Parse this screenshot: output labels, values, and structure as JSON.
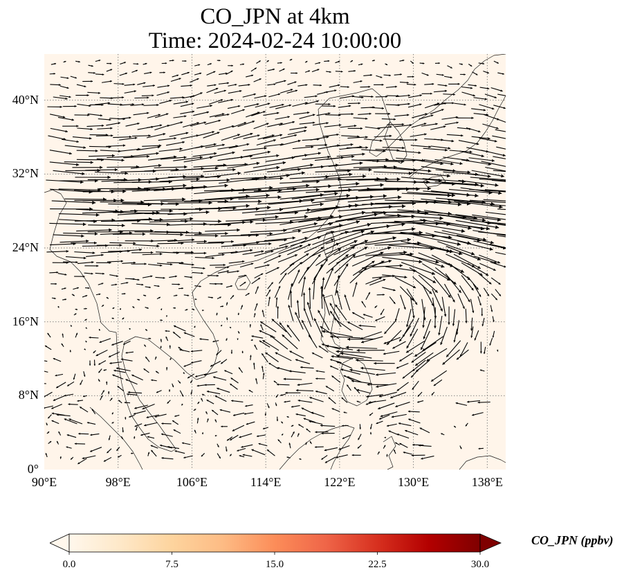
{
  "title": {
    "line1": "CO_JPN at 4km",
    "line2": "Time: 2024-02-24 10:00:00"
  },
  "map": {
    "projection": "PlateCarree",
    "lon_range": [
      90,
      140
    ],
    "lat_range": [
      0,
      45
    ],
    "gridlines": "dotted",
    "background_color": "#fff5ea",
    "coastline_color": "#1a1a1a",
    "vector_color": "#000000",
    "vector_field_description": "strong westerly jet across 24-36N, anticyclonic circulation near 118-130E 15-22N, weak variable winds south of 15N"
  },
  "axes": {
    "lat_ticks": [
      {
        "value": 40,
        "label": "40°N"
      },
      {
        "value": 32,
        "label": "32°N"
      },
      {
        "value": 24,
        "label": "24°N"
      },
      {
        "value": 16,
        "label": "16°N"
      },
      {
        "value": 8,
        "label": "8°N"
      },
      {
        "value": 0,
        "label": "0°"
      }
    ],
    "lon_ticks": [
      {
        "value": 90,
        "label": "90°E"
      },
      {
        "value": 98,
        "label": "98°E"
      },
      {
        "value": 106,
        "label": "106°E"
      },
      {
        "value": 114,
        "label": "114°E"
      },
      {
        "value": 122,
        "label": "122°E"
      },
      {
        "value": 130,
        "label": "130°E"
      },
      {
        "value": 138,
        "label": "138°E"
      }
    ]
  },
  "colorbar": {
    "label": "CO_JPN (ppbv)",
    "colormap": "OrRd",
    "range": [
      0,
      30
    ],
    "extend": "both",
    "ticks": [
      {
        "value": 0,
        "label": "0.0"
      },
      {
        "value": 7.5,
        "label": "7.5"
      },
      {
        "value": 15,
        "label": "15.0"
      },
      {
        "value": 22.5,
        "label": "22.5"
      },
      {
        "value": 30,
        "label": "30.0"
      }
    ],
    "stops": [
      "#fff7ec",
      "#fee8c8",
      "#fdd49e",
      "#fdbb84",
      "#fc8d59",
      "#ef6548",
      "#d7301f",
      "#b30000",
      "#7f0000"
    ]
  }
}
